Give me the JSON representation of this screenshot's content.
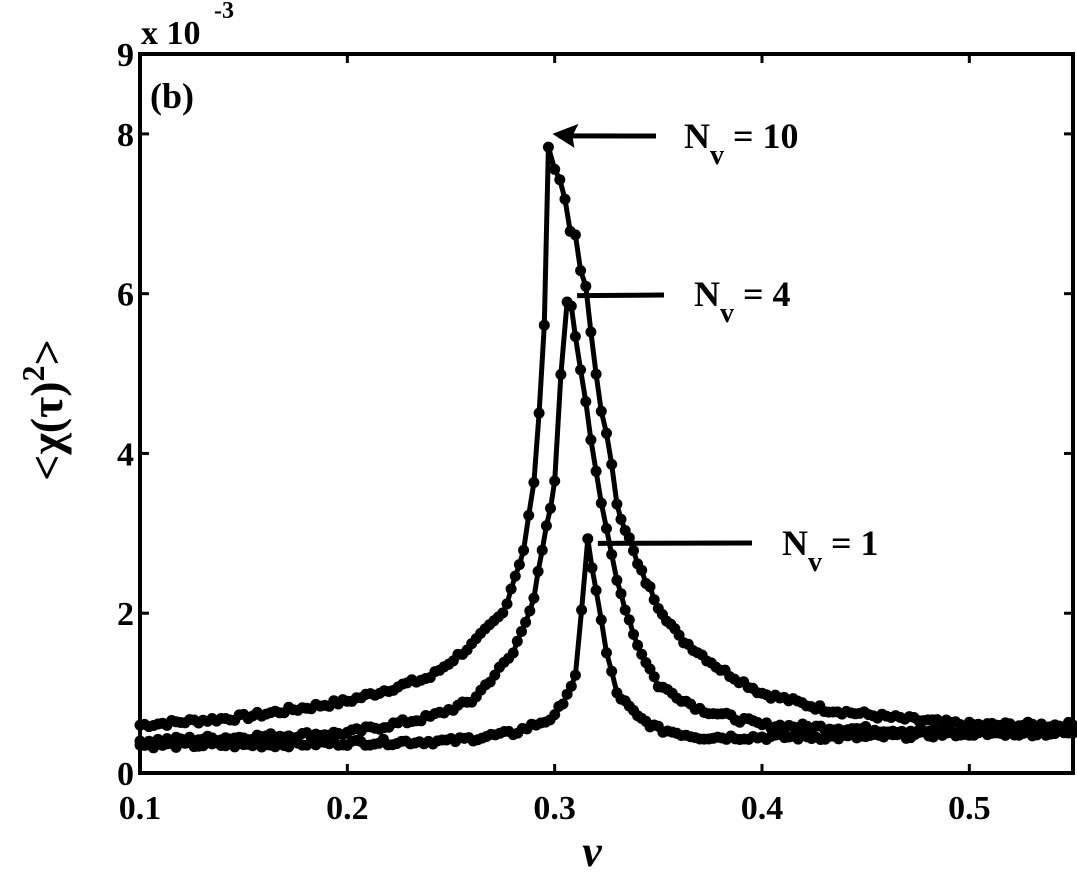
{
  "chart_data": {
    "type": "line",
    "panel_label": "(b)",
    "title": "",
    "xlabel": "ν",
    "ylabel": "<χ(τ)²>",
    "y_scale_label": "x 10",
    "y_scale_exponent": "-3",
    "xlim": [
      0.1,
      0.55
    ],
    "ylim": [
      0,
      9
    ],
    "x_ticks": [
      "0.1",
      "0.2",
      "0.3",
      "0.4",
      "0.5"
    ],
    "y_ticks": [
      "0",
      "2",
      "4",
      "6",
      "8",
      "9"
    ],
    "grid": false,
    "legend_position": "annotations with arrows",
    "marker": "filled circle",
    "color": "#000000",
    "series": [
      {
        "name": "N_v = 10",
        "peak_x": 0.297,
        "peak_y": 8.0,
        "x": [
          0.1,
          0.15,
          0.2,
          0.24,
          0.26,
          0.275,
          0.285,
          0.29,
          0.295,
          0.297,
          0.3,
          0.305,
          0.31,
          0.315,
          0.32,
          0.325,
          0.33,
          0.34,
          0.35,
          0.36,
          0.38,
          0.4,
          0.43,
          0.46,
          0.5,
          0.55
        ],
        "y": [
          0.6,
          0.7,
          0.9,
          1.2,
          1.6,
          2.0,
          2.8,
          3.6,
          5.5,
          8.0,
          7.6,
          7.2,
          6.6,
          6.0,
          5.0,
          4.2,
          3.4,
          2.6,
          2.1,
          1.7,
          1.3,
          1.0,
          0.8,
          0.7,
          0.6,
          0.6
        ]
      },
      {
        "name": "N_v = 4",
        "peak_x": 0.306,
        "peak_y": 6.0,
        "x": [
          0.1,
          0.15,
          0.2,
          0.24,
          0.26,
          0.28,
          0.29,
          0.3,
          0.303,
          0.306,
          0.31,
          0.315,
          0.32,
          0.325,
          0.33,
          0.34,
          0.35,
          0.37,
          0.4,
          0.45,
          0.5,
          0.55
        ],
        "y": [
          0.4,
          0.45,
          0.5,
          0.7,
          0.9,
          1.5,
          2.2,
          3.6,
          5.0,
          6.0,
          5.5,
          4.7,
          3.8,
          3.0,
          2.4,
          1.6,
          1.1,
          0.8,
          0.6,
          0.55,
          0.5,
          0.55
        ]
      },
      {
        "name": "N_v = 1",
        "peak_x": 0.316,
        "peak_y": 2.9,
        "x": [
          0.1,
          0.15,
          0.2,
          0.25,
          0.28,
          0.3,
          0.31,
          0.313,
          0.316,
          0.32,
          0.325,
          0.33,
          0.34,
          0.35,
          0.37,
          0.4,
          0.45,
          0.5,
          0.55
        ],
        "y": [
          0.35,
          0.35,
          0.38,
          0.4,
          0.5,
          0.7,
          1.2,
          2.0,
          2.9,
          2.3,
          1.5,
          1.0,
          0.7,
          0.55,
          0.45,
          0.45,
          0.45,
          0.5,
          0.5
        ]
      }
    ],
    "annotations": [
      {
        "text_main": "N",
        "text_sub": "v",
        "text_rest": " = 10",
        "arrow_to": [
          0.297,
          8.0
        ]
      },
      {
        "text_main": "N",
        "text_sub": "v",
        "text_rest": " = 4",
        "arrow_to": [
          0.306,
          6.0
        ]
      },
      {
        "text_main": "N",
        "text_sub": "v",
        "text_rest": " = 1",
        "arrow_to": [
          0.316,
          2.9
        ]
      }
    ]
  }
}
